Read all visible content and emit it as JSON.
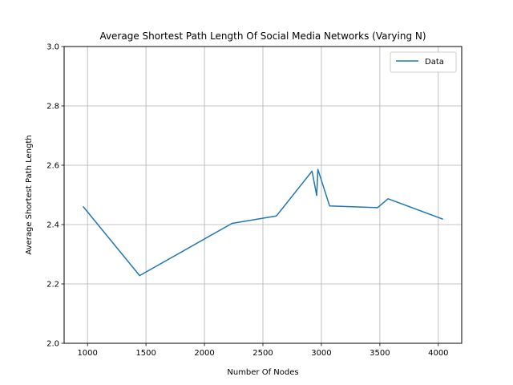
{
  "chart_data": {
    "type": "line",
    "title": "Average Shortest Path Length Of Social Media Networks (Varying N)",
    "xlabel": "Number Of Nodes",
    "ylabel": "Average Shortest Path Length",
    "xlim": [
      800,
      4200
    ],
    "ylim": [
      2.0,
      3.0
    ],
    "xticks": [
      1000,
      1500,
      2000,
      2500,
      3000,
      3500,
      4000
    ],
    "yticks": [
      2.0,
      2.2,
      2.4,
      2.6,
      2.8,
      3.0
    ],
    "xtick_labels": [
      "1000",
      "1500",
      "2000",
      "2500",
      "3000",
      "3500",
      "4000"
    ],
    "ytick_labels": [
      "2.0",
      "2.2",
      "2.4",
      "2.6",
      "2.8",
      "3.0"
    ],
    "grid": true,
    "legend_position": "top-right",
    "color": "#1f77b4",
    "series": [
      {
        "name": "Data",
        "x": [
          962,
          1446,
          2236,
          2615,
          2920,
          2960,
          2970,
          3070,
          3480,
          3570,
          4040
        ],
        "y": [
          2.461,
          2.228,
          2.404,
          2.429,
          2.58,
          2.498,
          2.586,
          2.463,
          2.457,
          2.487,
          2.418
        ]
      }
    ]
  }
}
